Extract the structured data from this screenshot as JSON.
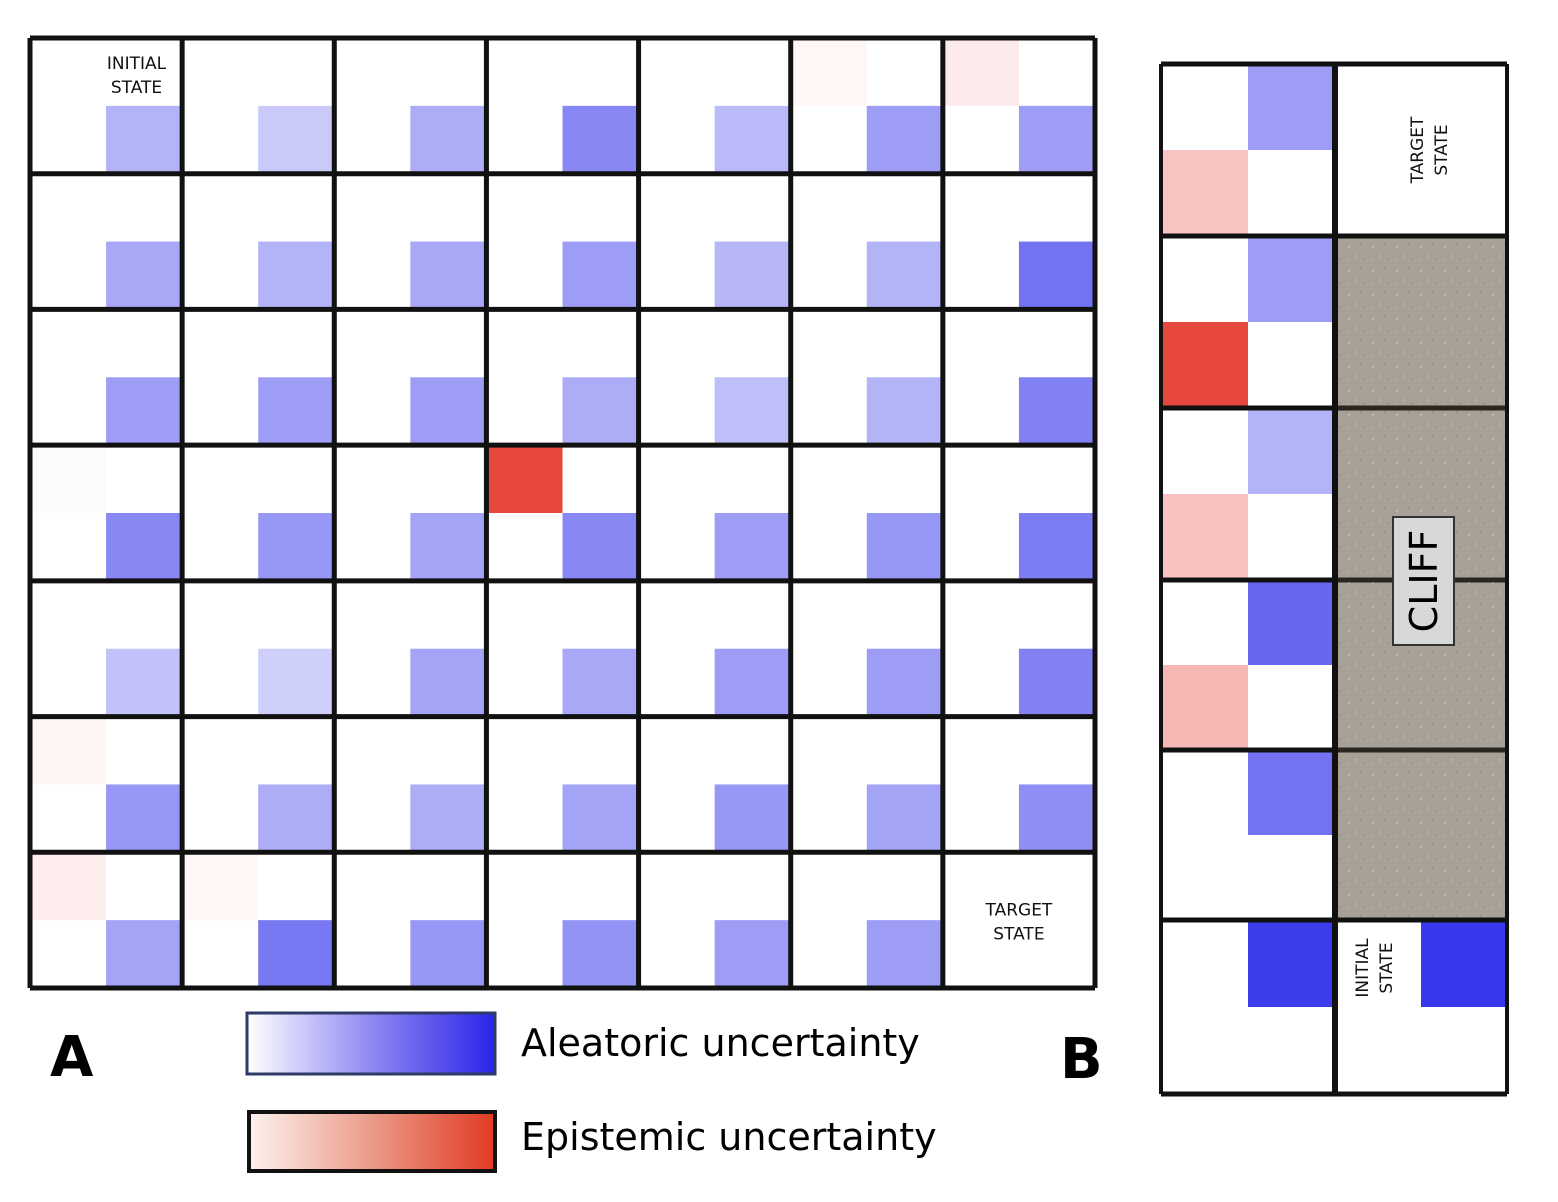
{
  "panel_a": {
    "letter": "A",
    "initial_label": [
      "INITIAL",
      "STATE"
    ],
    "target_label": [
      "TARGET",
      "STATE"
    ],
    "rows": 7,
    "cols": 7,
    "aleatoric": [
      [
        0.35,
        0.25,
        0.38,
        0.55,
        0.32,
        0.45,
        0.45
      ],
      [
        0.4,
        0.35,
        0.4,
        0.45,
        0.33,
        0.35,
        0.65
      ],
      [
        0.45,
        0.45,
        0.45,
        0.38,
        0.3,
        0.35,
        0.58
      ],
      [
        0.55,
        0.48,
        0.42,
        0.55,
        0.45,
        0.48,
        0.6
      ],
      [
        0.28,
        0.22,
        0.42,
        0.4,
        0.45,
        0.45,
        0.58
      ],
      [
        0.48,
        0.38,
        0.38,
        0.42,
        0.48,
        0.42,
        0.52
      ],
      [
        0.42,
        0.62,
        0.48,
        0.5,
        0.45,
        0.45,
        0.0
      ]
    ],
    "epistemic": [
      [
        0.0,
        0.0,
        0.0,
        0.0,
        0.0,
        0.04,
        0.1
      ],
      [
        0.0,
        0.0,
        0.0,
        0.0,
        0.0,
        0.0,
        0.0
      ],
      [
        0.0,
        0.0,
        0.0,
        0.0,
        0.0,
        0.0,
        0.0
      ],
      [
        0.02,
        0.0,
        0.0,
        0.9,
        0.0,
        0.0,
        0.0
      ],
      [
        0.0,
        0.0,
        0.0,
        0.0,
        0.0,
        0.0,
        0.0
      ],
      [
        0.05,
        0.0,
        0.0,
        0.0,
        0.0,
        0.0,
        0.0
      ],
      [
        0.09,
        0.04,
        0.0,
        0.0,
        0.0,
        0.0,
        0.0
      ]
    ]
  },
  "panel_b": {
    "letter": "B",
    "target_label": [
      "TARGET",
      "STATE"
    ],
    "initial_label": [
      "INITIAL",
      "STATE"
    ],
    "cliff_label": "CLIFF",
    "aleatoric": [
      0.45,
      0.45,
      0.35,
      0.7,
      0.65,
      0.9
    ],
    "epistemic": [
      0.28,
      0.9,
      0.3,
      0.35,
      0.0,
      0.0
    ],
    "initial_cell_aleatoric": 0.92
  },
  "legend": {
    "aleatoric_label": "Aleatoric uncertainty",
    "epistemic_label": "Epistemic uncertainty",
    "aleatoric_color": "#2a24e8",
    "epistemic_color": "#e03a22"
  }
}
